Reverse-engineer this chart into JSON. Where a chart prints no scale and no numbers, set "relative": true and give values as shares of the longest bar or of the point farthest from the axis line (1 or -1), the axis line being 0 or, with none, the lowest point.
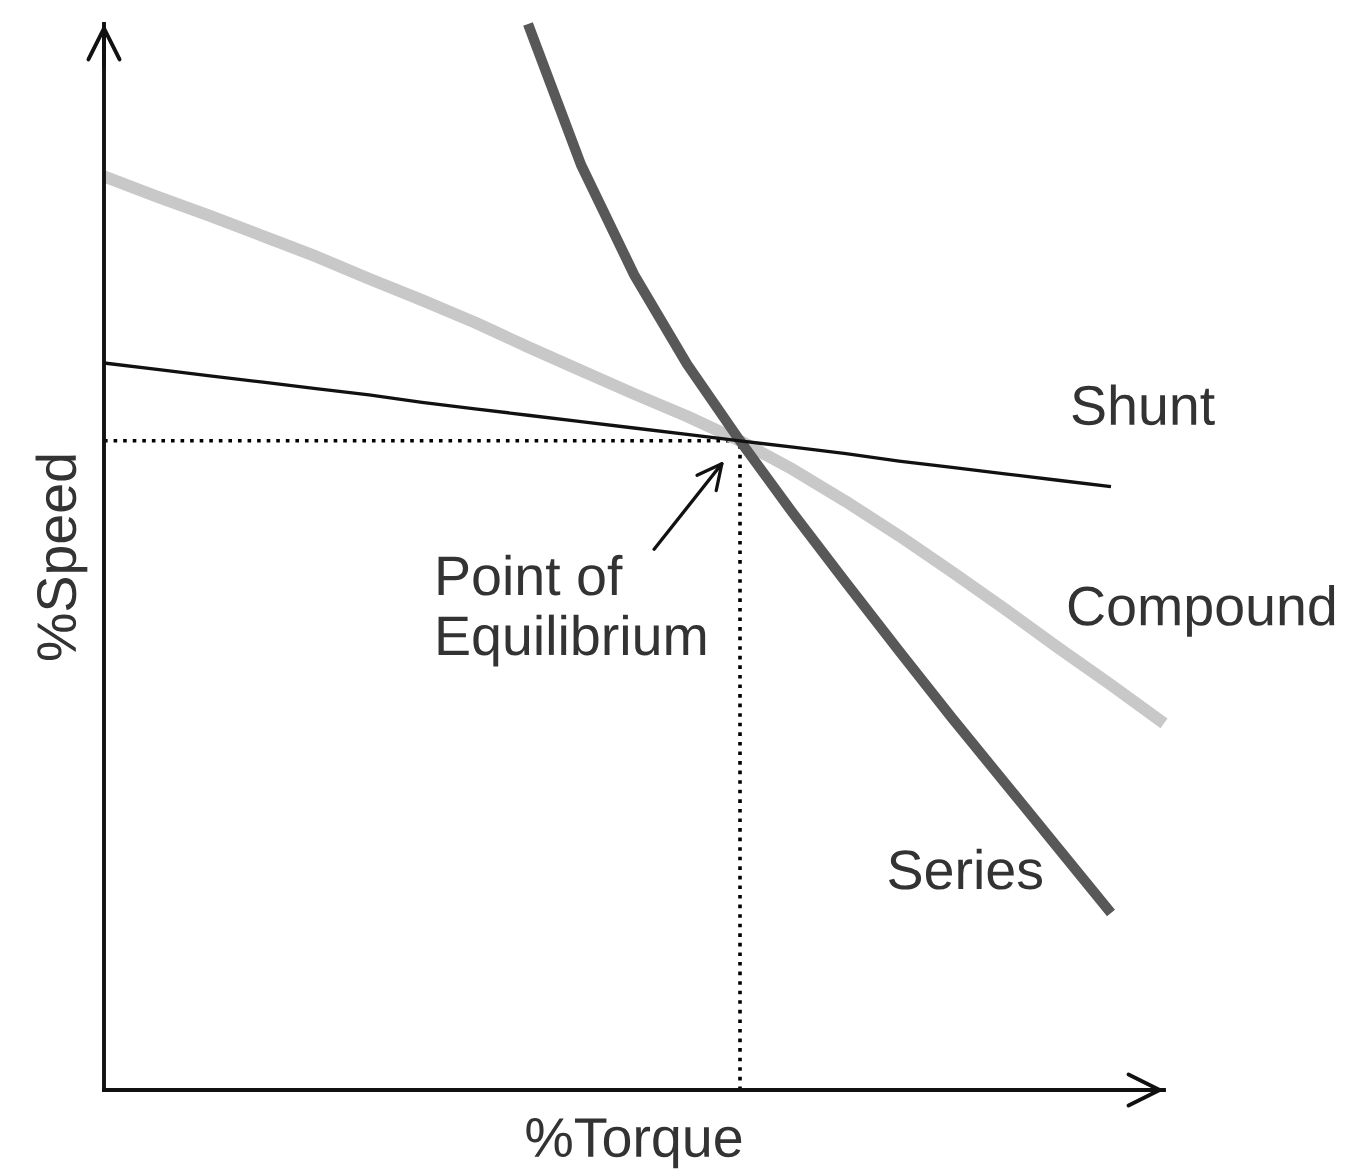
{
  "chart_data": {
    "type": "line",
    "relative": true,
    "xlabel": "%Torque",
    "ylabel": "%Speed",
    "categories": [
      null,
      null,
      null,
      null,
      null,
      null,
      null,
      null,
      null,
      null,
      null,
      null,
      null,
      null,
      null,
      null,
      null,
      null,
      null,
      null,
      null
    ],
    "series": [
      {
        "name": "Compound",
        "color": "#c8c8c8",
        "values": [
          0.857,
          0.838,
          0.82,
          0.801,
          0.782,
          0.761,
          0.741,
          0.72,
          0.697,
          0.675,
          0.653,
          0.632,
          0.609,
          0.582,
          0.552,
          0.52,
          0.486,
          0.451,
          0.415,
          0.38,
          0.344
        ]
      },
      {
        "name": "Series",
        "color": "#585858",
        "values": [
          null,
          null,
          null,
          null,
          null,
          null,
          null,
          null,
          1.0,
          0.868,
          0.765,
          0.681,
          0.609,
          0.541,
          0.476,
          0.412,
          0.349,
          0.288,
          0.227,
          0.166,
          null
        ]
      },
      {
        "name": "Shunt",
        "color": "#111111",
        "values": [
          0.682,
          0.676,
          0.67,
          0.664,
          0.658,
          0.652,
          0.645,
          0.639,
          0.633,
          0.627,
          0.621,
          0.615,
          0.609,
          0.603,
          0.597,
          0.59,
          0.584,
          0.578,
          0.572,
          0.566,
          null
        ]
      }
    ],
    "ref_lines": [
      {
        "axis": "y",
        "value": 0.609,
        "color": "#000000",
        "line_style": "dotted"
      }
    ],
    "annotations": [
      "Point of\nEquilibrium"
    ]
  }
}
